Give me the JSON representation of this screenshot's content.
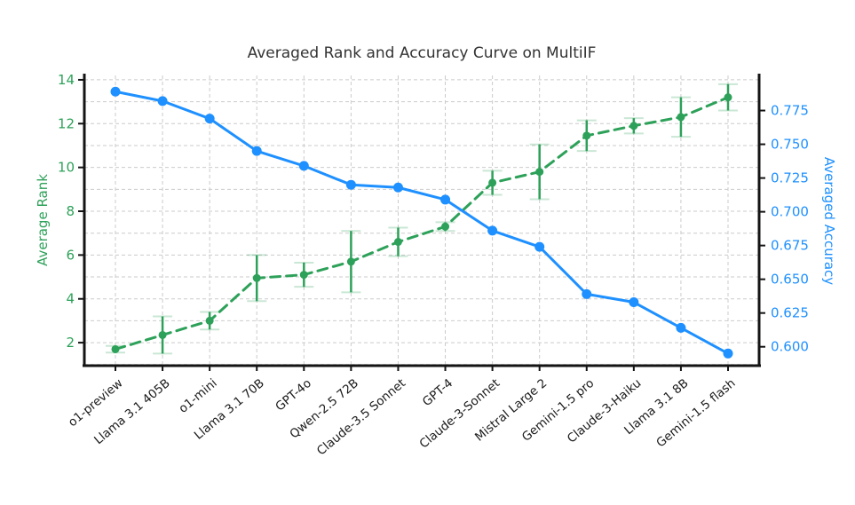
{
  "chart_data": {
    "type": "line",
    "title": "Averaged Rank and Accuracy Curve on MultiIF",
    "categories": [
      "o1-preview",
      "Llama 3.1 405B",
      "o1-mini",
      "Llama 3.1 70B",
      "GPT-4o",
      "Qwen-2.5 72B",
      "Claude-3.5 Sonnet",
      "GPT-4",
      "Claude-3-Sonnet",
      "Mistral Large 2",
      "Gemini-1.5 pro",
      "Claude-3-Haiku",
      "Llama 3.1 8B",
      "Gemini-1.5 flash"
    ],
    "series": [
      {
        "name": "Average Rank",
        "axis": "left",
        "line_style": "dashed",
        "marker": "circle",
        "color": "#2da159",
        "values": [
          1.7,
          2.35,
          3.0,
          4.95,
          5.1,
          5.7,
          6.6,
          7.3,
          9.3,
          9.8,
          11.45,
          11.9,
          12.3,
          13.2
        ],
        "errors": [
          0.15,
          0.85,
          0.4,
          1.05,
          0.55,
          1.4,
          0.65,
          0.2,
          0.55,
          1.25,
          0.7,
          0.35,
          0.9,
          0.6
        ]
      },
      {
        "name": "Averaged Accuracy",
        "axis": "right",
        "line_style": "solid",
        "marker": "circle",
        "color": "#1e90ff",
        "values": [
          0.789,
          0.782,
          0.769,
          0.745,
          0.734,
          0.72,
          0.718,
          0.709,
          0.686,
          0.674,
          0.639,
          0.633,
          0.614,
          0.595
        ]
      }
    ],
    "left_axis": {
      "label": "Average Rank",
      "color": "#2da159",
      "ticks": [
        2,
        4,
        6,
        8,
        10,
        12,
        14
      ],
      "range": [
        0.95,
        14.2
      ]
    },
    "right_axis": {
      "label": "Averaged Accuracy",
      "color": "#1e90ff",
      "ticks": [
        "0.600",
        "0.625",
        "0.650",
        "0.675",
        "0.700",
        "0.725",
        "0.750",
        "0.775"
      ],
      "range": [
        0.586,
        0.801
      ]
    },
    "grid": true,
    "legend_position": "none",
    "x_label_rotation_deg": -40
  }
}
